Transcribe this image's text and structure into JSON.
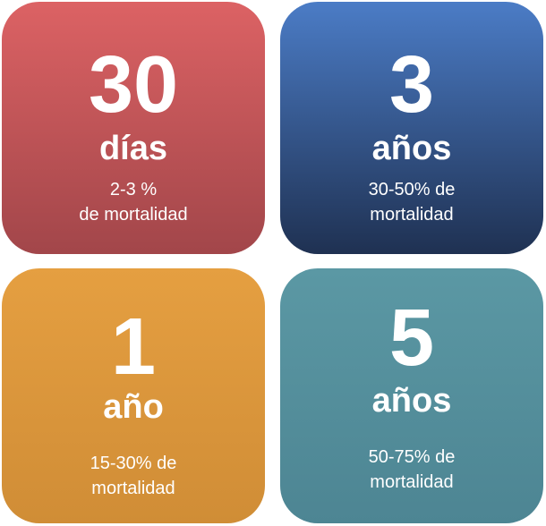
{
  "cards": [
    {
      "number": "30",
      "unit": "días",
      "line1": "2-3 %",
      "line2": "de mortalidad",
      "color_top": "#dc6264",
      "color_bottom": "#a2464a"
    },
    {
      "number": "3",
      "unit": "años",
      "line1": "30-50% de",
      "line2": "mortalidad",
      "color_top": "#4b7cc6",
      "color_bottom": "#1f3152"
    },
    {
      "number": "1",
      "unit": "año",
      "line1": "15-30% de",
      "line2": "mortalidad",
      "color_top": "#e59f41",
      "color_bottom": "#d08d36"
    },
    {
      "number": "5",
      "unit": "años",
      "line1": "50-75% de",
      "line2": "mortalidad",
      "color_top": "#5b98a4",
      "color_bottom": "#4d8593"
    }
  ]
}
